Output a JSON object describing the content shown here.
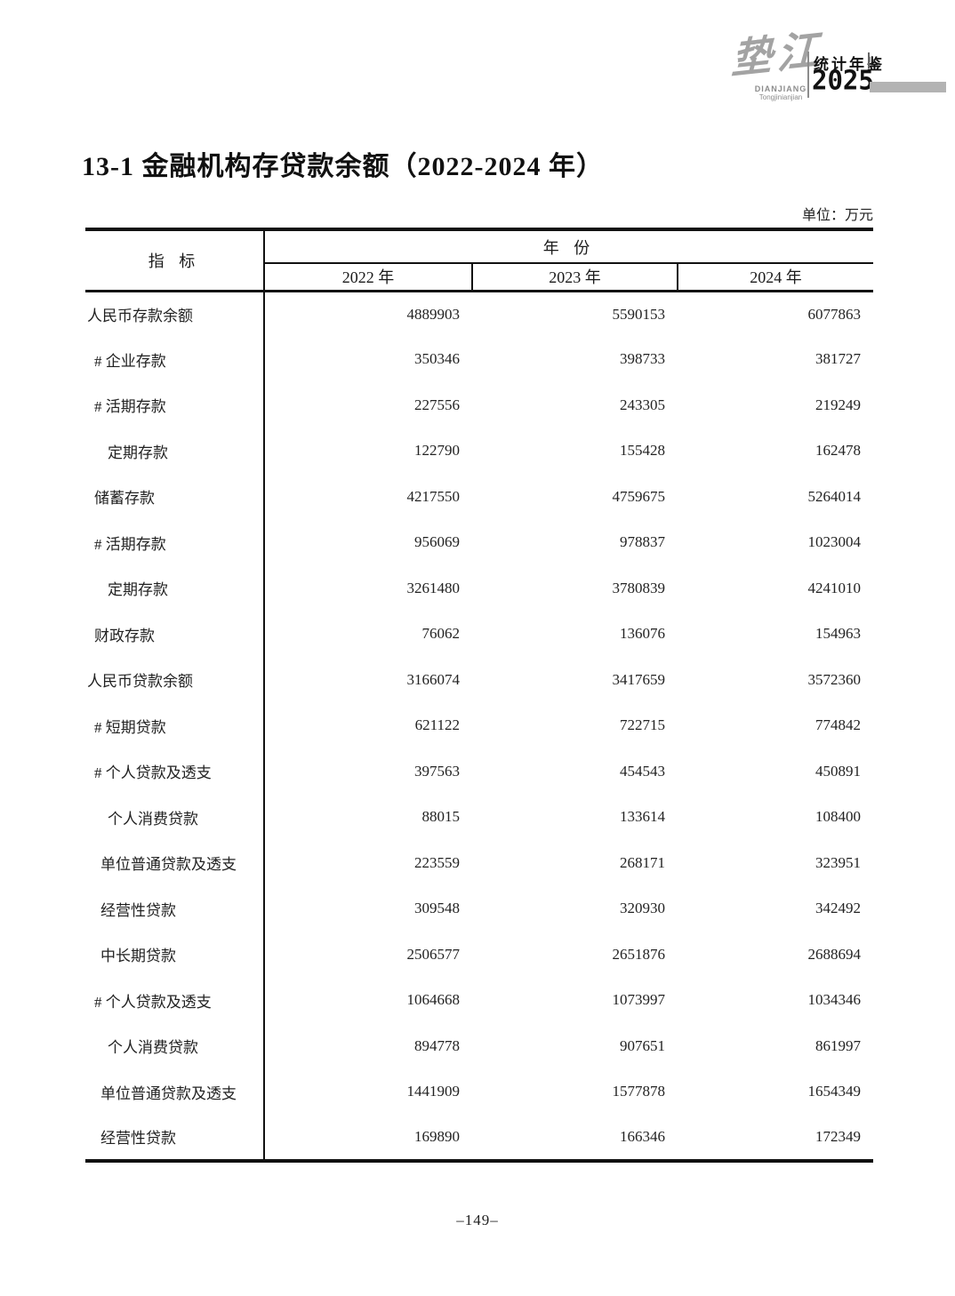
{
  "logo": {
    "calligraphy": "垫江",
    "name_en": "DIANJIANG",
    "subtitle_en": "Tongjinianjian",
    "yearbook_label": "统计年鉴",
    "yearbook_year": "2025"
  },
  "page": {
    "title": "13-1  金融机构存贷款余额（2022-2024 年）",
    "unit_label": "单位：万元",
    "page_number": "–149–"
  },
  "colors": {
    "ink": "#1a1a1a",
    "logo_gray": "#a3a3a3",
    "bar_gray": "#b3b3b3"
  },
  "table": {
    "stub_header": "指 标",
    "group_header": "年 份",
    "year_columns": [
      "2022 年",
      "2023 年",
      "2024 年"
    ],
    "rows": [
      {
        "label": "人民币存款余额",
        "indent": 0,
        "values": [
          "4889903",
          "5590153",
          "6077863"
        ]
      },
      {
        "label": "# 企业存款",
        "indent": 1,
        "values": [
          "350346",
          "398733",
          "381727"
        ]
      },
      {
        "label": "# 活期存款",
        "indent": 1,
        "values": [
          "227556",
          "243305",
          "219249"
        ]
      },
      {
        "label": "定期存款",
        "indent": 3,
        "values": [
          "122790",
          "155428",
          "162478"
        ]
      },
      {
        "label": "储蓄存款",
        "indent": 1,
        "values": [
          "4217550",
          "4759675",
          "5264014"
        ]
      },
      {
        "label": "# 活期存款",
        "indent": 1,
        "values": [
          "956069",
          "978837",
          "1023004"
        ]
      },
      {
        "label": "定期存款",
        "indent": 3,
        "values": [
          "3261480",
          "3780839",
          "4241010"
        ]
      },
      {
        "label": "财政存款",
        "indent": 1,
        "values": [
          "76062",
          "136076",
          "154963"
        ]
      },
      {
        "label": "人民币贷款余额",
        "indent": 0,
        "values": [
          "3166074",
          "3417659",
          "3572360"
        ]
      },
      {
        "label": "# 短期贷款",
        "indent": 1,
        "values": [
          "621122",
          "722715",
          "774842"
        ]
      },
      {
        "label": "# 个人贷款及透支",
        "indent": 1,
        "values": [
          "397563",
          "454543",
          "450891"
        ]
      },
      {
        "label": "个人消费贷款",
        "indent": 3,
        "values": [
          "88015",
          "133614",
          "108400"
        ]
      },
      {
        "label": "单位普通贷款及透支",
        "indent": 2,
        "values": [
          "223559",
          "268171",
          "323951"
        ]
      },
      {
        "label": "经营性贷款",
        "indent": 2,
        "values": [
          "309548",
          "320930",
          "342492"
        ]
      },
      {
        "label": "中长期贷款",
        "indent": 2,
        "values": [
          "2506577",
          "2651876",
          "2688694"
        ]
      },
      {
        "label": "# 个人贷款及透支",
        "indent": 1,
        "values": [
          "1064668",
          "1073997",
          "1034346"
        ]
      },
      {
        "label": "个人消费贷款",
        "indent": 3,
        "values": [
          "894778",
          "907651",
          "861997"
        ]
      },
      {
        "label": "单位普通贷款及透支",
        "indent": 2,
        "values": [
          "1441909",
          "1577878",
          "1654349"
        ]
      },
      {
        "label": "经营性贷款",
        "indent": 2,
        "values": [
          "169890",
          "166346",
          "172349"
        ]
      }
    ]
  }
}
